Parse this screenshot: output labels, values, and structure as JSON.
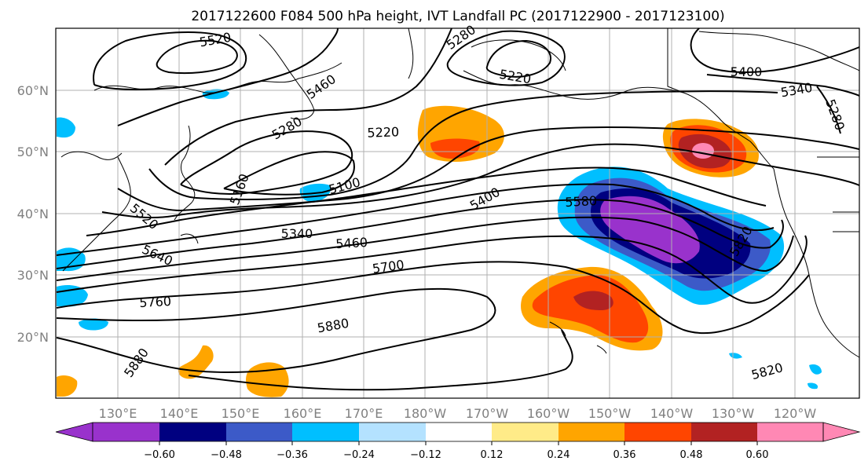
{
  "title": "2017122600 F084 500 hPa height, IVT Landfall PC (2017122900 - 2017123100)",
  "map": {
    "lon_range": [
      121,
      246
    ],
    "lat_range": [
      10,
      70
    ],
    "gridlines": true,
    "lon_ticks": [
      "130°E",
      "140°E",
      "150°E",
      "160°E",
      "170°E",
      "180°W",
      "170°W",
      "160°W",
      "150°W",
      "140°W",
      "130°W",
      "120°W"
    ],
    "lat_ticks": [
      "20°N",
      "30°N",
      "40°N",
      "50°N",
      "60°N"
    ]
  },
  "contour_labels": [
    "5520",
    "5280",
    "5220",
    "5400",
    "5340",
    "5280",
    "5460",
    "5220",
    "5100",
    "5160",
    "5280",
    "5580",
    "5400",
    "5520",
    "5340",
    "5460",
    "5640",
    "5700",
    "5760",
    "5820",
    "5880",
    "5880",
    "5820"
  ],
  "colorbar": {
    "ticks": [
      "−0.60",
      "−0.48",
      "−0.36",
      "−0.24",
      "−0.12",
      "0.12",
      "0.24",
      "0.36",
      "0.48",
      "0.60"
    ],
    "colors": [
      "#9932cc",
      "#000080",
      "#3c5ac8",
      "#00bfff",
      "#b4e2ff",
      "#ffffff",
      "#ffeb88",
      "#ffa500",
      "#ff4500",
      "#b22222",
      "#ff88b4"
    ]
  }
}
